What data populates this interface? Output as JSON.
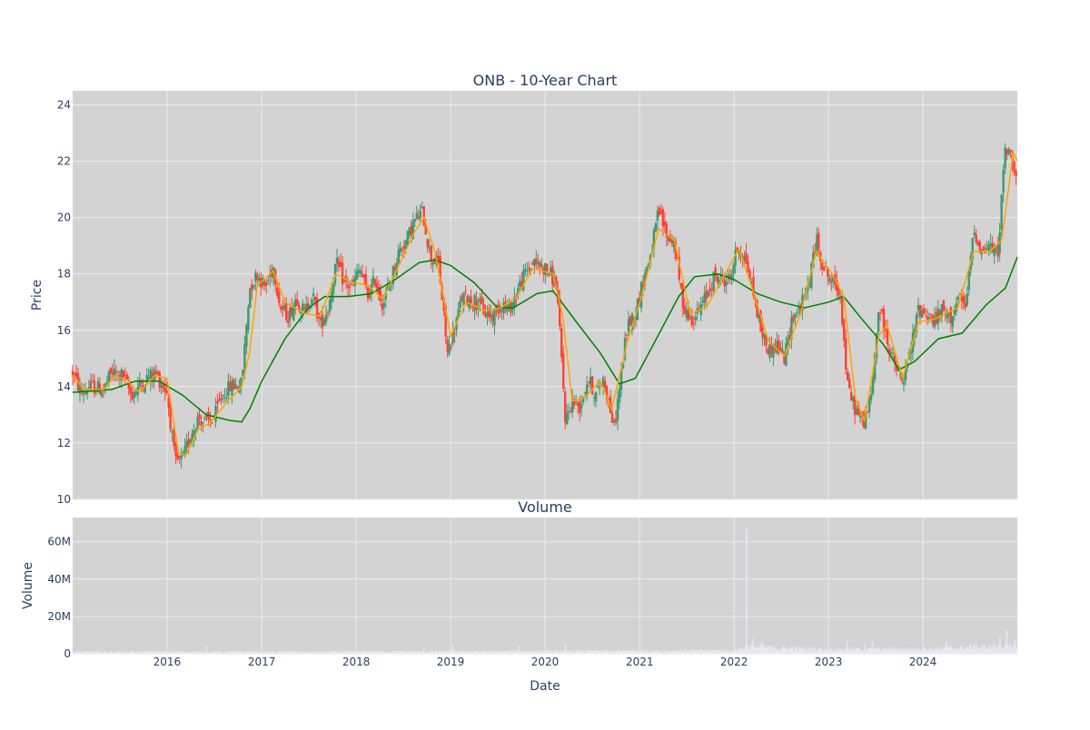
{
  "chart_data": [
    {
      "type": "candlestick",
      "title": "ONB - 10-Year Chart",
      "xlabel": "",
      "ylabel": "Price",
      "ylim": [
        10,
        24.5
      ],
      "xlim": [
        "2015-01-01",
        "2024-12-31"
      ],
      "yticks": [
        "10",
        "12",
        "14",
        "16",
        "18",
        "20",
        "22",
        "24"
      ],
      "grid": true,
      "colors": {
        "up": "#3d9970",
        "down": "#ff4136",
        "ma_short": "#ffa500",
        "ma_long": "#008000",
        "plot_bg": "#d3d3d3",
        "grid": "#ebebeb"
      },
      "price_path": [
        [
          "2015-01-01",
          14.5
        ],
        [
          "2015-02-01",
          13.8
        ],
        [
          "2015-03-15",
          14.0
        ],
        [
          "2015-05-01",
          13.9
        ],
        [
          "2015-06-01",
          14.5
        ],
        [
          "2015-07-15",
          14.4
        ],
        [
          "2015-08-15",
          13.7
        ],
        [
          "2015-10-01",
          14.2
        ],
        [
          "2015-11-15",
          14.5
        ],
        [
          "2016-01-01",
          13.8
        ],
        [
          "2016-02-01",
          11.3
        ],
        [
          "2016-03-01",
          11.4
        ],
        [
          "2016-04-01",
          12.3
        ],
        [
          "2016-05-01",
          12.9
        ],
        [
          "2016-06-01",
          12.7
        ],
        [
          "2016-07-01",
          12.9
        ],
        [
          "2016-08-01",
          13.7
        ],
        [
          "2016-09-01",
          14.0
        ],
        [
          "2016-10-15",
          14.1
        ],
        [
          "2016-11-15",
          17.5
        ],
        [
          "2016-12-15",
          18.0
        ],
        [
          "2017-01-15",
          17.5
        ],
        [
          "2017-02-15",
          18.3
        ],
        [
          "2017-03-15",
          16.8
        ],
        [
          "2017-04-15",
          16.5
        ],
        [
          "2017-05-15",
          17.2
        ],
        [
          "2017-06-15",
          16.6
        ],
        [
          "2017-07-15",
          17.3
        ],
        [
          "2017-08-15",
          16.2
        ],
        [
          "2017-09-15",
          16.8
        ],
        [
          "2017-10-15",
          18.4
        ],
        [
          "2017-11-15",
          17.7
        ],
        [
          "2017-12-15",
          17.5
        ],
        [
          "2018-01-15",
          18.2
        ],
        [
          "2018-02-15",
          17.2
        ],
        [
          "2018-03-15",
          17.8
        ],
        [
          "2018-04-15",
          16.9
        ],
        [
          "2018-05-15",
          17.8
        ],
        [
          "2018-06-15",
          18.8
        ],
        [
          "2018-07-15",
          19.2
        ],
        [
          "2018-08-15",
          19.9
        ],
        [
          "2018-09-15",
          20.2
        ],
        [
          "2018-10-15",
          18.6
        ],
        [
          "2018-11-15",
          18.4
        ],
        [
          "2018-12-20",
          15.2
        ],
        [
          "2019-01-15",
          16.0
        ],
        [
          "2019-02-15",
          17.2
        ],
        [
          "2019-03-15",
          17.1
        ],
        [
          "2019-04-15",
          17.0
        ],
        [
          "2019-05-15",
          16.6
        ],
        [
          "2019-06-15",
          16.5
        ],
        [
          "2019-07-15",
          17.0
        ],
        [
          "2019-08-15",
          16.7
        ],
        [
          "2019-09-15",
          17.4
        ],
        [
          "2019-10-15",
          18.0
        ],
        [
          "2019-11-15",
          18.4
        ],
        [
          "2019-12-15",
          18.3
        ],
        [
          "2020-01-15",
          18.1
        ],
        [
          "2020-02-15",
          17.6
        ],
        [
          "2020-03-20",
          12.8
        ],
        [
          "2020-04-15",
          13.5
        ],
        [
          "2020-05-15",
          13.3
        ],
        [
          "2020-06-15",
          14.3
        ],
        [
          "2020-07-15",
          13.7
        ],
        [
          "2020-08-15",
          14.3
        ],
        [
          "2020-09-25",
          12.5
        ],
        [
          "2020-10-15",
          14.0
        ],
        [
          "2020-11-15",
          16.2
        ],
        [
          "2020-12-15",
          16.6
        ],
        [
          "2021-01-15",
          17.8
        ],
        [
          "2021-02-15",
          18.8
        ],
        [
          "2021-03-15",
          20.2
        ],
        [
          "2021-04-15",
          19.4
        ],
        [
          "2021-05-15",
          19.1
        ],
        [
          "2021-06-15",
          17.0
        ],
        [
          "2021-07-15",
          16.4
        ],
        [
          "2021-08-15",
          16.6
        ],
        [
          "2021-09-15",
          17.2
        ],
        [
          "2021-10-15",
          17.9
        ],
        [
          "2021-11-15",
          17.8
        ],
        [
          "2021-12-15",
          17.8
        ],
        [
          "2022-01-15",
          19.0
        ],
        [
          "2022-02-15",
          18.5
        ],
        [
          "2022-03-15",
          17.4
        ],
        [
          "2022-04-15",
          16.0
        ],
        [
          "2022-05-15",
          15.3
        ],
        [
          "2022-06-15",
          15.5
        ],
        [
          "2022-07-15",
          15.0
        ],
        [
          "2022-08-15",
          16.5
        ],
        [
          "2022-09-15",
          16.8
        ],
        [
          "2022-10-15",
          17.6
        ],
        [
          "2022-11-15",
          19.2
        ],
        [
          "2022-12-15",
          18.2
        ],
        [
          "2023-01-15",
          17.7
        ],
        [
          "2023-02-15",
          17.4
        ],
        [
          "2023-03-15",
          14.0
        ],
        [
          "2023-04-15",
          13.2
        ],
        [
          "2023-05-15",
          12.7
        ],
        [
          "2023-06-15",
          13.6
        ],
        [
          "2023-07-15",
          16.9
        ],
        [
          "2023-08-15",
          15.7
        ],
        [
          "2023-09-15",
          14.7
        ],
        [
          "2023-10-15",
          14.1
        ],
        [
          "2023-11-15",
          15.3
        ],
        [
          "2023-12-15",
          16.8
        ],
        [
          "2024-01-15",
          16.6
        ],
        [
          "2024-02-15",
          16.3
        ],
        [
          "2024-03-15",
          16.7
        ],
        [
          "2024-04-15",
          16.4
        ],
        [
          "2024-05-15",
          17.1
        ],
        [
          "2024-06-15",
          16.8
        ],
        [
          "2024-07-15",
          19.6
        ],
        [
          "2024-08-15",
          18.8
        ],
        [
          "2024-09-15",
          19.0
        ],
        [
          "2024-10-15",
          18.6
        ],
        [
          "2024-11-15",
          22.5
        ],
        [
          "2024-12-15",
          22.0
        ],
        [
          "2024-12-31",
          21.5
        ]
      ],
      "ma_short": [
        [
          "2015-01-01",
          14.4
        ],
        [
          "2015-02-15",
          13.9
        ],
        [
          "2015-05-01",
          13.9
        ],
        [
          "2015-06-15",
          14.4
        ],
        [
          "2015-08-01",
          14.2
        ],
        [
          "2015-09-15",
          13.8
        ],
        [
          "2015-11-15",
          14.4
        ],
        [
          "2016-01-01",
          14.3
        ],
        [
          "2016-02-15",
          11.6
        ],
        [
          "2016-03-15",
          11.6
        ],
        [
          "2016-05-01",
          12.5
        ],
        [
          "2016-06-15",
          12.7
        ],
        [
          "2016-08-15",
          13.4
        ],
        [
          "2016-10-15",
          14.0
        ],
        [
          "2016-11-15",
          15.2
        ],
        [
          "2016-12-15",
          17.6
        ],
        [
          "2017-02-15",
          18.1
        ],
        [
          "2017-04-01",
          17.0
        ],
        [
          "2017-06-15",
          16.6
        ],
        [
          "2017-08-15",
          16.5
        ],
        [
          "2017-10-15",
          18.0
        ],
        [
          "2017-12-15",
          17.7
        ],
        [
          "2018-02-15",
          17.6
        ],
        [
          "2018-04-15",
          17.1
        ],
        [
          "2018-06-15",
          18.3
        ],
        [
          "2018-08-15",
          19.5
        ],
        [
          "2018-09-20",
          20.0
        ],
        [
          "2018-11-01",
          18.8
        ],
        [
          "2019-01-01",
          15.8
        ],
        [
          "2019-03-01",
          17.0
        ],
        [
          "2019-05-15",
          16.7
        ],
        [
          "2019-07-15",
          16.8
        ],
        [
          "2019-09-15",
          17.2
        ],
        [
          "2019-11-15",
          18.2
        ],
        [
          "2020-02-01",
          18.0
        ],
        [
          "2020-03-10",
          16.5
        ],
        [
          "2020-04-15",
          13.5
        ],
        [
          "2020-06-01",
          13.6
        ],
        [
          "2020-08-01",
          14.2
        ],
        [
          "2020-09-15",
          13.2
        ],
        [
          "2020-11-15",
          15.6
        ],
        [
          "2021-01-15",
          17.4
        ],
        [
          "2021-03-15",
          19.6
        ],
        [
          "2021-05-15",
          19.2
        ],
        [
          "2021-07-15",
          16.6
        ],
        [
          "2021-09-15",
          16.8
        ],
        [
          "2021-11-15",
          17.8
        ],
        [
          "2022-01-20",
          18.9
        ],
        [
          "2022-03-15",
          17.4
        ],
        [
          "2022-05-15",
          15.6
        ],
        [
          "2022-07-15",
          15.1
        ],
        [
          "2022-09-15",
          16.6
        ],
        [
          "2022-11-15",
          18.8
        ],
        [
          "2023-01-15",
          18.0
        ],
        [
          "2023-03-01",
          17.2
        ],
        [
          "2023-04-15",
          13.6
        ],
        [
          "2023-05-20",
          12.8
        ],
        [
          "2023-07-15",
          15.8
        ],
        [
          "2023-08-15",
          16.2
        ],
        [
          "2023-10-15",
          14.3
        ],
        [
          "2023-12-15",
          16.3
        ],
        [
          "2024-02-15",
          16.4
        ],
        [
          "2024-05-15",
          16.8
        ],
        [
          "2024-07-15",
          18.8
        ],
        [
          "2024-09-15",
          18.8
        ],
        [
          "2024-11-01",
          19.2
        ],
        [
          "2024-12-15",
          22.3
        ],
        [
          "2024-12-31",
          22.0
        ]
      ],
      "ma_long": [
        [
          "2015-01-01",
          13.8
        ],
        [
          "2015-06-01",
          13.9
        ],
        [
          "2015-09-01",
          14.2
        ],
        [
          "2015-12-01",
          14.2
        ],
        [
          "2016-03-01",
          13.7
        ],
        [
          "2016-06-01",
          13.0
        ],
        [
          "2016-09-01",
          12.8
        ],
        [
          "2016-10-15",
          12.75
        ],
        [
          "2016-11-15",
          13.2
        ],
        [
          "2017-01-01",
          14.2
        ],
        [
          "2017-04-01",
          15.7
        ],
        [
          "2017-07-01",
          16.8
        ],
        [
          "2017-09-01",
          17.2
        ],
        [
          "2017-12-01",
          17.2
        ],
        [
          "2018-03-01",
          17.3
        ],
        [
          "2018-06-01",
          17.8
        ],
        [
          "2018-09-01",
          18.4
        ],
        [
          "2018-11-01",
          18.5
        ],
        [
          "2019-01-01",
          18.3
        ],
        [
          "2019-04-01",
          17.7
        ],
        [
          "2019-07-01",
          16.8
        ],
        [
          "2019-09-01",
          16.8
        ],
        [
          "2019-12-01",
          17.3
        ],
        [
          "2020-02-01",
          17.4
        ],
        [
          "2020-05-01",
          16.3
        ],
        [
          "2020-08-01",
          15.2
        ],
        [
          "2020-10-15",
          14.1
        ],
        [
          "2020-12-15",
          14.3
        ],
        [
          "2021-03-01",
          15.6
        ],
        [
          "2021-06-01",
          17.2
        ],
        [
          "2021-08-01",
          17.9
        ],
        [
          "2021-11-01",
          18.0
        ],
        [
          "2022-01-01",
          17.8
        ],
        [
          "2022-04-01",
          17.3
        ],
        [
          "2022-07-01",
          17.0
        ],
        [
          "2022-10-01",
          16.8
        ],
        [
          "2023-01-01",
          17.0
        ],
        [
          "2023-03-01",
          17.2
        ],
        [
          "2023-05-01",
          16.5
        ],
        [
          "2023-08-01",
          15.5
        ],
        [
          "2023-10-01",
          14.6
        ],
        [
          "2023-12-01",
          14.9
        ],
        [
          "2024-03-01",
          15.7
        ],
        [
          "2024-06-01",
          15.9
        ],
        [
          "2024-09-01",
          16.9
        ],
        [
          "2024-11-15",
          17.5
        ],
        [
          "2024-12-31",
          18.6
        ]
      ]
    },
    {
      "type": "bar",
      "title": "Volume",
      "xlabel": "Date",
      "ylabel": "Volume",
      "ylim": [
        0,
        73000000
      ],
      "yticks": [
        {
          "value": 0,
          "label": "0"
        },
        {
          "value": 20000000,
          "label": "20M"
        },
        {
          "value": 40000000,
          "label": "40M"
        },
        {
          "value": 60000000,
          "label": "60M"
        }
      ],
      "xticks": [
        {
          "date": "2016-01-01",
          "label": "2016"
        },
        {
          "date": "2017-01-01",
          "label": "2017"
        },
        {
          "date": "2018-01-01",
          "label": "2018"
        },
        {
          "date": "2019-01-01",
          "label": "2019"
        },
        {
          "date": "2020-01-01",
          "label": "2020"
        },
        {
          "date": "2021-01-01",
          "label": "2021"
        },
        {
          "date": "2022-01-01",
          "label": "2022"
        },
        {
          "date": "2023-01-01",
          "label": "2023"
        },
        {
          "date": "2024-01-01",
          "label": "2024"
        }
      ],
      "bar_color": "#e8e8f4",
      "volume_base": [
        [
          "2015-01-01",
          1000000
        ],
        [
          "2018-01-01",
          1100000
        ],
        [
          "2020-01-01",
          1300000
        ],
        [
          "2022-01-01",
          1600000
        ],
        [
          "2022-02-20",
          3500000
        ],
        [
          "2023-01-01",
          2200000
        ],
        [
          "2024-01-01",
          2500000
        ],
        [
          "2024-12-31",
          3800000
        ]
      ],
      "volume_spikes": [
        [
          "2016-06-01",
          4000000
        ],
        [
          "2018-09-20",
          3500000
        ],
        [
          "2019-01-10",
          4500000
        ],
        [
          "2019-09-20",
          4000000
        ],
        [
          "2020-03-20",
          5500000
        ],
        [
          "2022-02-18",
          68000000
        ],
        [
          "2022-03-15",
          8000000
        ],
        [
          "2022-04-20",
          6000000
        ],
        [
          "2023-03-15",
          6500000
        ],
        [
          "2023-05-20",
          4800000
        ],
        [
          "2023-06-20",
          6500000
        ],
        [
          "2024-04-01",
          7000000
        ],
        [
          "2024-07-25",
          5000000
        ],
        [
          "2024-10-25",
          9000000
        ],
        [
          "2024-11-20",
          12500000
        ],
        [
          "2024-12-20",
          7500000
        ]
      ]
    }
  ]
}
